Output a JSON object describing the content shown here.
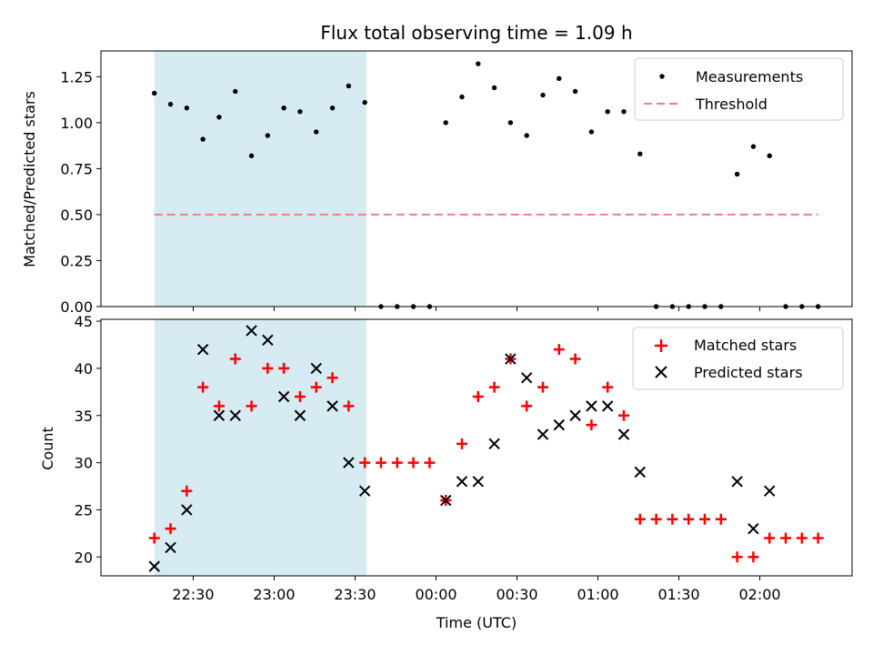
{
  "chart_data": {
    "title": "Flux total observing time = 1.09 h",
    "xlabel": "Time (UTC)",
    "highlight_span": [
      -2.12,
      -1.465
    ],
    "top": {
      "type": "scatter",
      "ylabel": "Matched/Predicted stars",
      "ylim": [
        0,
        1.39
      ],
      "yticks": [
        0.0,
        0.25,
        0.5,
        0.75,
        1.0,
        1.25
      ],
      "ytick_labels": [
        "0.00",
        "0.25",
        "0.50",
        "0.75",
        "1.00",
        "1.25"
      ],
      "legend": [
        "Measurements",
        "Threshold"
      ],
      "threshold": {
        "value": 0.5,
        "x_range": [
          -2.12,
          -0.07
        ],
        "color": "#f08080"
      },
      "measurements": {
        "x": [
          -2.12,
          -2.07,
          -2.02,
          -1.97,
          -1.92,
          -1.87,
          -1.82,
          -1.77,
          -1.72,
          -1.67,
          -1.62,
          -1.57,
          -1.52,
          -1.47,
          -1.42,
          -1.37,
          -1.32,
          -1.27,
          -1.22,
          -1.17,
          -1.12,
          -1.07,
          -1.02,
          -0.97,
          -0.92,
          -0.87,
          -0.82,
          -0.77,
          -0.72,
          -0.67,
          -0.62,
          -0.57,
          -0.52,
          -0.47,
          -0.42,
          -0.37,
          -0.32,
          -0.27,
          -0.22,
          -0.17,
          -0.12,
          -0.07
        ],
        "y": [
          1.16,
          1.1,
          1.08,
          0.91,
          1.03,
          1.17,
          0.82,
          0.93,
          1.08,
          1.06,
          0.95,
          1.08,
          1.2,
          1.11,
          0.0,
          0.0,
          0.0,
          0.0,
          1.0,
          1.14,
          1.32,
          1.19,
          1.0,
          0.93,
          1.15,
          1.24,
          1.17,
          0.95,
          1.06,
          1.06,
          0.83,
          0.0,
          0.0,
          0.0,
          0.0,
          0.0,
          0.72,
          0.87,
          0.82,
          0.0,
          0.0,
          0.0
        ]
      }
    },
    "bottom": {
      "type": "scatter",
      "ylabel": "Count",
      "ylim": [
        18,
        45.2
      ],
      "yticks": [
        20,
        25,
        30,
        35,
        40,
        45
      ],
      "ytick_labels": [
        "20",
        "25",
        "30",
        "35",
        "40",
        "45"
      ],
      "legend": [
        "Matched stars",
        "Predicted stars"
      ],
      "matched": {
        "x": [
          -2.12,
          -2.07,
          -2.02,
          -1.97,
          -1.92,
          -1.87,
          -1.82,
          -1.77,
          -1.72,
          -1.67,
          -1.62,
          -1.57,
          -1.52,
          -1.47,
          -1.42,
          -1.37,
          -1.32,
          -1.27,
          -1.22,
          -1.17,
          -1.12,
          -1.07,
          -1.02,
          -0.97,
          -0.92,
          -0.87,
          -0.82,
          -0.77,
          -0.72,
          -0.67,
          -0.62,
          -0.57,
          -0.52,
          -0.47,
          -0.42,
          -0.37,
          -0.32,
          -0.27,
          -0.22,
          -0.17,
          -0.12,
          -0.07
        ],
        "y": [
          22,
          23,
          27,
          38,
          36,
          41,
          36,
          40,
          40,
          37,
          38,
          39,
          36,
          30,
          30,
          30,
          30,
          30,
          26,
          32,
          37,
          38,
          41,
          36,
          38,
          42,
          41,
          34,
          38,
          35,
          24,
          24,
          24,
          24,
          24,
          24,
          20,
          20,
          22,
          22,
          22,
          22
        ]
      },
      "predicted": {
        "x": [
          -2.12,
          -2.07,
          -2.02,
          -1.97,
          -1.92,
          -1.87,
          -1.82,
          -1.77,
          -1.72,
          -1.67,
          -1.62,
          -1.57,
          -1.52,
          -1.47,
          -1.22,
          -1.17,
          -1.12,
          -1.07,
          -1.02,
          -0.97,
          -0.92,
          -0.87,
          -0.82,
          -0.77,
          -0.72,
          -0.67,
          -0.62,
          -0.32,
          -0.27,
          -0.22
        ],
        "y": [
          19,
          21,
          25,
          42,
          35,
          35,
          44,
          43,
          37,
          35,
          40,
          36,
          30,
          27,
          26,
          28,
          28,
          32,
          41,
          39,
          33,
          34,
          35,
          36,
          36,
          33,
          29,
          28,
          23,
          27
        ]
      }
    },
    "xaxis": {
      "xlim": [
        -2.285,
        0.035
      ],
      "ticks": [
        -2.0,
        -1.75,
        -1.5,
        -1.25,
        -1.0,
        -0.75,
        -0.5,
        -0.25
      ],
      "tick_labels": [
        "22:30",
        "23:00",
        "23:30",
        "00:00",
        "00:30",
        "01:00",
        "01:30",
        "02:00"
      ],
      "shown_tick_labels": [
        "22:30",
        "23:00",
        "23:30",
        "00:00",
        "00:30",
        "01:00",
        "01:30"
      ]
    },
    "colors": {
      "highlight": "#add8e6",
      "matched": "#ff0000",
      "predicted": "#000000",
      "measurement": "#000000"
    }
  }
}
